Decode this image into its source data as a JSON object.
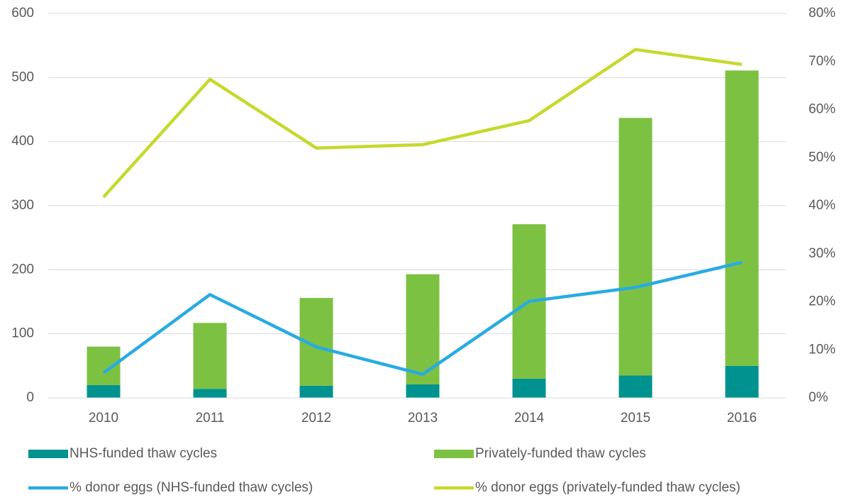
{
  "chart_data": {
    "type": "bar",
    "stacked": true,
    "categories": [
      "2010",
      "2011",
      "2012",
      "2013",
      "2014",
      "2015",
      "2016"
    ],
    "series": [
      {
        "name": "NHS-funded thaw cycles",
        "color": "#00928f",
        "values": [
          20,
          14,
          19,
          21,
          30,
          35,
          50
        ]
      },
      {
        "name": "Privately-funded thaw cycles",
        "color": "#7dc142",
        "values": [
          60,
          103,
          137,
          172,
          241,
          402,
          461
        ]
      },
      {
        "name": "% donor eggs (NHS-funded thaw cycles)",
        "type": "line",
        "axis": "y2",
        "color": "#29abe2",
        "values": [
          5.2,
          21.5,
          10.6,
          4.9,
          20.1,
          23.0,
          28.2
        ]
      },
      {
        "name": "% donor eggs (privately-funded thaw cycles)",
        "type": "line",
        "axis": "y2",
        "color": "#c5d92d",
        "values": [
          41.8,
          66.3,
          52.0,
          52.7,
          57.7,
          72.5,
          69.4
        ]
      }
    ],
    "ylim": [
      0,
      600
    ],
    "yticks": [
      0,
      100,
      200,
      300,
      400,
      500,
      600
    ],
    "y2lim": [
      0,
      80
    ],
    "y2ticks": [
      {
        "value": 0,
        "label": "0%"
      },
      {
        "value": 10,
        "label": "10%"
      },
      {
        "value": 20,
        "label": "20%"
      },
      {
        "value": 30,
        "label": "30%"
      },
      {
        "value": 40,
        "label": "40%"
      },
      {
        "value": 50,
        "label": "50%"
      },
      {
        "value": 60,
        "label": "60%"
      },
      {
        "value": 70,
        "label": "70%"
      },
      {
        "value": 80,
        "label": "80%"
      }
    ],
    "grid": true,
    "legend": "bottom"
  }
}
